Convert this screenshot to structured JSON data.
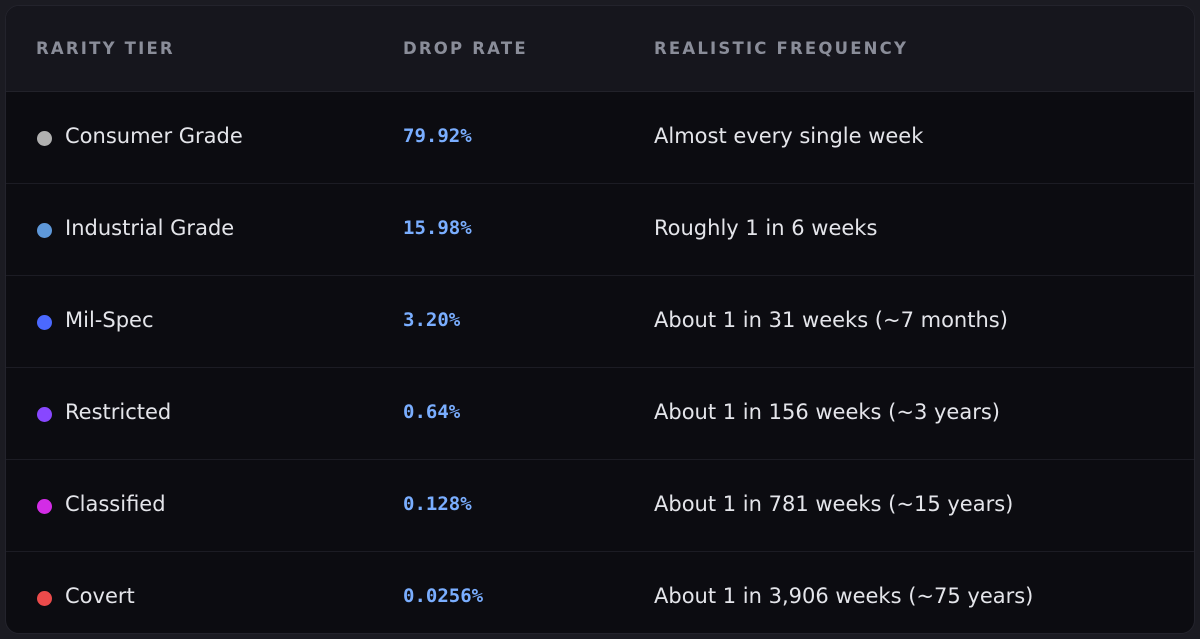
{
  "table": {
    "headers": {
      "tier": "RARITY TIER",
      "rate": "DROP RATE",
      "frequency": "REALISTIC FREQUENCY"
    },
    "rows": [
      {
        "tier": "Consumer Grade",
        "rate": "79.92%",
        "frequency": "Almost every single week",
        "color": "#b0b0b0"
      },
      {
        "tier": "Industrial Grade",
        "rate": "15.98%",
        "frequency": "Roughly 1 in 6 weeks",
        "color": "#5e98d9"
      },
      {
        "tier": "Mil-Spec",
        "rate": "3.20%",
        "frequency": "About 1 in 31 weeks (~7 months)",
        "color": "#4b69ff"
      },
      {
        "tier": "Restricted",
        "rate": "0.64%",
        "frequency": "About 1 in 156 weeks (~3 years)",
        "color": "#8847ff"
      },
      {
        "tier": "Classified",
        "rate": "0.128%",
        "frequency": "About 1 in 781 weeks (~15 years)",
        "color": "#d32ce6"
      },
      {
        "tier": "Covert",
        "rate": "0.0256%",
        "frequency": "About 1 in 3,906 weeks (~75 years)",
        "color": "#eb4b4b"
      }
    ]
  }
}
